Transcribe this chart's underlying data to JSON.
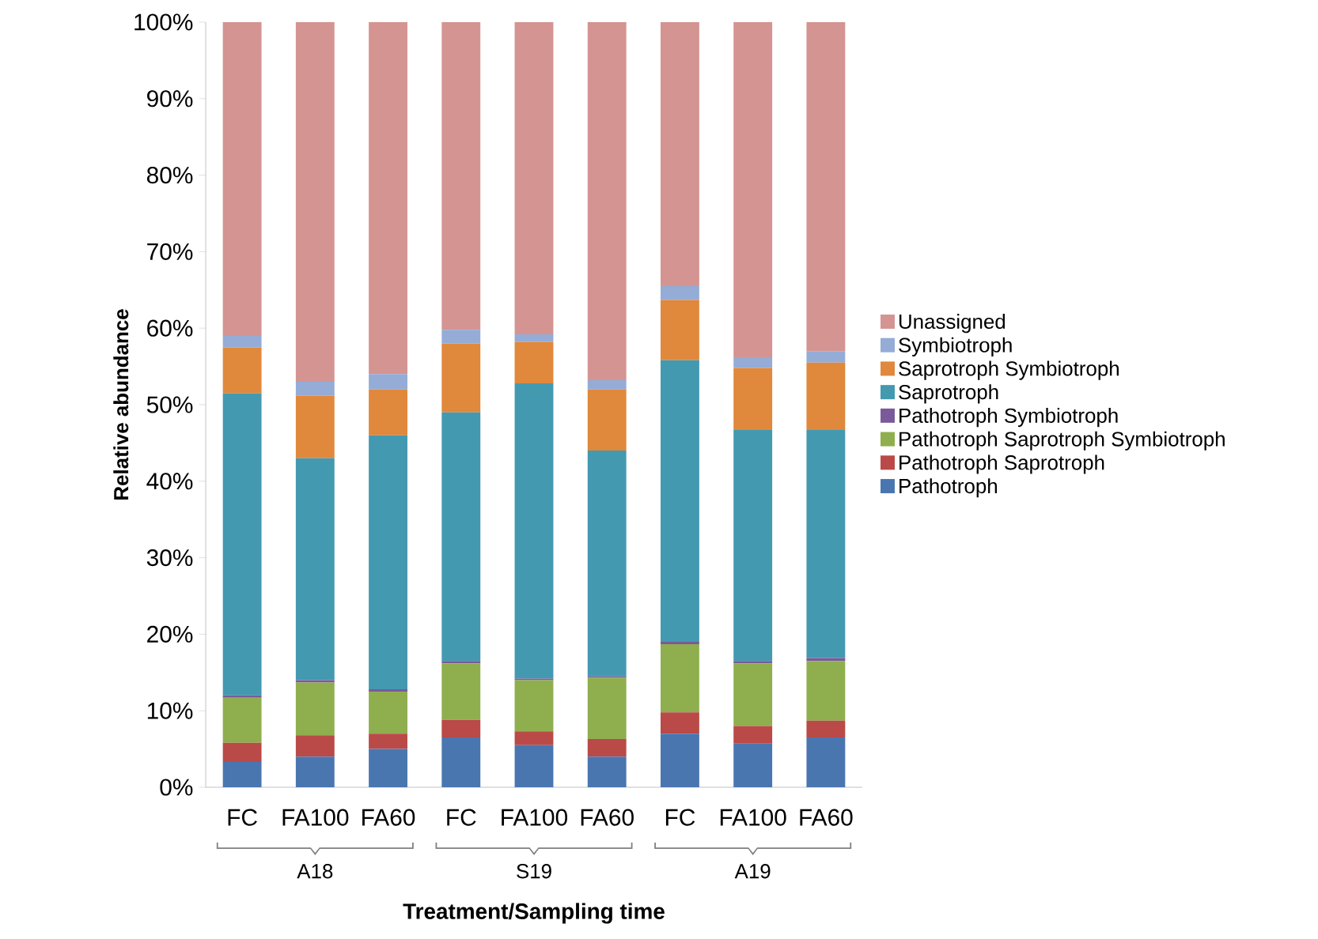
{
  "chart_data": {
    "type": "bar",
    "stacked": true,
    "xlabel": "Treatment/Sampling time",
    "ylabel": "Relative abundance",
    "categories": [
      "FC",
      "FA100",
      "FA60",
      "FC",
      "FA100",
      "FA60",
      "FC",
      "FA100",
      "FA60"
    ],
    "annotations": [
      "A18",
      "S19",
      "A19"
    ],
    "ylim": [
      0,
      100
    ],
    "yticks": [
      {
        "value": 0,
        "label": "0%"
      },
      {
        "value": 10,
        "label": "10%"
      },
      {
        "value": 20,
        "label": "20%"
      },
      {
        "value": 30,
        "label": "30%"
      },
      {
        "value": 40,
        "label": "40%"
      },
      {
        "value": 50,
        "label": "50%"
      },
      {
        "value": 60,
        "label": "60%"
      },
      {
        "value": 70,
        "label": "70%"
      },
      {
        "value": 80,
        "label": "80%"
      },
      {
        "value": 90,
        "label": "90%"
      },
      {
        "value": 100,
        "label": "100%"
      }
    ],
    "legend": "right",
    "series": [
      {
        "name": "Pathotroph",
        "color": "#4a76b0",
        "values": [
          3.3,
          4.0,
          5.0,
          6.5,
          5.5,
          4.0,
          7.0,
          5.7,
          6.5
        ]
      },
      {
        "name": "Pathotroph Saprotroph",
        "color": "#b94a48",
        "values": [
          2.5,
          2.8,
          2.0,
          2.3,
          1.8,
          2.3,
          2.8,
          2.3,
          2.2
        ]
      },
      {
        "name": "Pathotroph Saprotroph Symbiotroph",
        "color": "#8fae4e",
        "values": [
          5.9,
          6.9,
          5.5,
          7.4,
          6.7,
          8.0,
          8.9,
          8.2,
          7.8
        ]
      },
      {
        "name": "Pathotroph Symbiotroph",
        "color": "#7a5a9a",
        "values": [
          0.3,
          0.3,
          0.3,
          0.3,
          0.2,
          0.2,
          0.3,
          0.3,
          0.4
        ]
      },
      {
        "name": "Saprotroph",
        "color": "#4399b0",
        "values": [
          39.5,
          29.0,
          33.2,
          32.5,
          38.6,
          29.5,
          36.8,
          30.2,
          29.8
        ]
      },
      {
        "name": "Saprotroph Symbiotroph",
        "color": "#e0883c",
        "values": [
          6.0,
          8.2,
          6.0,
          9.0,
          5.4,
          8.0,
          7.9,
          8.1,
          8.8
        ]
      },
      {
        "name": "Symbiotroph",
        "color": "#94acd6",
        "values": [
          1.5,
          1.8,
          2.0,
          1.8,
          1.0,
          1.2,
          1.8,
          1.4,
          1.5
        ]
      },
      {
        "name": "Unassigned",
        "color": "#d49492",
        "values": [
          41.0,
          47.0,
          46.0,
          40.2,
          40.8,
          46.8,
          34.5,
          43.8,
          43.0
        ]
      }
    ]
  }
}
